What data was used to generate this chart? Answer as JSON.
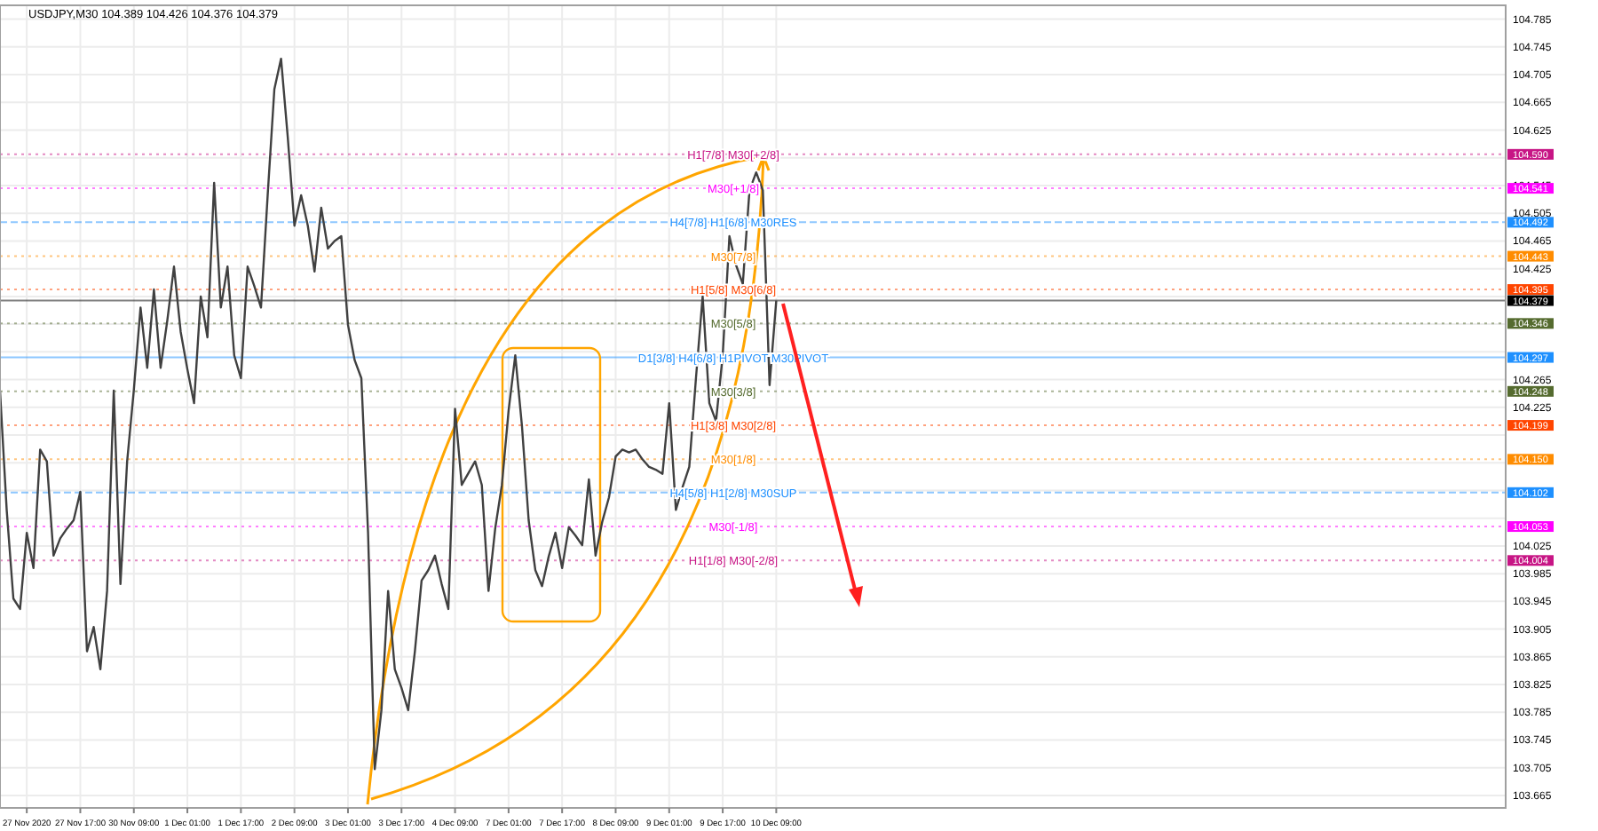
{
  "chart_data": {
    "type": "line",
    "title": "USDJPY,M30  104.389 104.426 104.376 104.379",
    "categories": [
      null,
      null,
      null,
      null,
      "27 Nov 2020",
      null,
      null,
      null,
      null,
      null,
      null,
      null,
      "27 Nov 17:00",
      null,
      null,
      null,
      null,
      null,
      null,
      null,
      "30 Nov 09:00",
      null,
      null,
      null,
      null,
      null,
      null,
      null,
      "1 Dec 01:00",
      null,
      null,
      null,
      null,
      null,
      null,
      null,
      "1 Dec 17:00",
      null,
      null,
      null,
      null,
      null,
      null,
      null,
      "2 Dec 09:00",
      null,
      null,
      null,
      null,
      null,
      null,
      null,
      "3 Dec 01:00",
      null,
      null,
      null,
      null,
      null,
      null,
      null,
      "3 Dec 17:00",
      null,
      null,
      null,
      null,
      null,
      null,
      null,
      "4 Dec 09:00",
      null,
      null,
      null,
      null,
      null,
      null,
      null,
      "7 Dec 01:00",
      null,
      null,
      null,
      null,
      null,
      null,
      null,
      "7 Dec 17:00",
      null,
      null,
      null,
      null,
      null,
      null,
      null,
      "8 Dec 09:00",
      null,
      null,
      null,
      null,
      null,
      null,
      null,
      "9 Dec 01:00",
      null,
      null,
      null,
      null,
      null,
      null,
      null,
      "9 Dec 17:00",
      null,
      null,
      null,
      null,
      null,
      null,
      null,
      "10 Dec 09:00",
      null,
      null,
      null,
      null,
      null,
      null,
      null,
      null,
      null,
      null,
      null,
      null,
      null,
      null,
      null,
      null,
      null,
      null,
      null,
      null,
      null,
      null,
      null,
      null,
      null,
      null,
      null,
      null,
      null,
      null,
      null,
      null,
      null,
      null,
      null,
      null,
      null,
      null,
      null,
      null,
      null,
      null,
      null,
      null,
      null,
      null,
      null,
      null,
      null,
      null,
      null,
      null,
      null,
      null,
      null,
      null,
      null,
      null,
      null,
      null,
      null,
      null,
      null,
      null,
      null,
      null,
      null,
      null,
      null,
      null,
      null,
      null,
      null,
      null,
      null,
      null,
      null,
      null,
      null,
      null,
      null,
      null,
      null,
      null,
      null,
      null,
      null,
      null,
      null,
      null,
      null,
      null,
      null,
      null,
      null,
      null,
      null,
      null,
      null,
      null,
      null,
      null,
      null,
      null,
      null,
      null,
      null,
      null,
      null
    ],
    "series": [
      {
        "color": "#404040",
        "values": [
          104.249,
          104.077,
          103.949,
          103.934,
          104.044,
          103.993,
          104.164,
          104.147,
          104.011,
          104.036,
          104.05,
          104.062,
          104.103,
          103.873,
          103.908,
          103.847,
          103.96,
          104.249,
          103.97,
          104.147,
          104.25,
          104.369,
          104.282,
          104.395,
          104.282,
          104.35,
          104.428,
          104.334,
          104.28,
          104.231,
          104.385,
          104.326,
          104.549,
          104.369,
          104.428,
          104.3,
          104.267,
          104.428,
          104.4,
          104.369,
          104.531,
          104.684,
          104.728,
          104.615,
          104.487,
          104.531,
          104.487,
          104.421,
          104.513,
          104.454,
          104.465,
          104.472,
          104.344,
          104.293,
          104.267,
          104.044,
          103.703,
          103.788,
          103.96,
          103.847,
          103.82,
          103.788,
          103.873,
          103.975,
          103.99,
          104.011,
          103.97,
          103.934,
          104.223,
          104.113,
          104.13,
          104.147,
          104.113,
          103.96,
          104.05,
          104.113,
          104.22,
          104.3,
          104.198,
          104.062,
          103.99,
          103.967,
          104.01,
          104.044,
          103.993,
          104.052,
          104.04,
          104.026,
          104.121,
          104.011,
          104.06,
          104.095,
          104.154,
          104.164,
          104.16,
          104.164,
          104.15,
          104.139,
          104.135,
          104.129,
          104.231,
          104.077,
          104.11,
          104.139,
          104.267,
          104.385,
          104.231,
          104.205,
          104.3,
          104.472,
          104.43,
          104.403,
          104.538,
          104.564,
          104.538,
          104.257,
          104.379,
          null,
          null,
          null,
          null,
          null,
          null,
          null,
          null,
          null,
          null,
          null,
          null,
          null,
          null,
          null,
          null,
          null,
          null,
          null,
          null,
          null,
          null,
          null,
          null,
          null,
          null,
          null,
          null,
          null,
          null,
          null,
          null,
          null,
          null,
          null,
          null,
          null,
          null,
          null,
          null,
          null,
          null,
          null,
          null,
          null,
          null,
          null,
          null,
          null,
          null,
          null,
          null,
          null,
          null,
          null,
          null,
          null,
          null,
          null,
          null,
          null,
          null,
          null,
          null,
          null,
          null,
          null,
          null,
          null,
          null,
          null,
          null,
          null,
          null,
          null,
          null,
          null,
          null,
          null,
          null,
          null,
          null,
          null,
          null,
          null,
          null,
          null,
          null,
          null,
          null,
          null,
          null,
          null,
          null,
          null,
          null,
          null,
          null,
          null,
          null,
          null,
          null,
          null,
          null,
          null,
          null,
          null,
          null,
          null
        ]
      }
    ],
    "ylim": [
      103.647,
      104.805
    ],
    "yticks": [
      103.665,
      103.705,
      103.745,
      103.785,
      103.825,
      103.865,
      103.905,
      103.945,
      103.985,
      104.025,
      {
        "value": 104.065,
        "label": null
      },
      {
        "value": 104.105,
        "label": null
      },
      {
        "value": 104.145,
        "label": null
      },
      {
        "value": 104.185,
        "label": null
      },
      104.225,
      104.265,
      {
        "value": 104.305,
        "label": null
      },
      {
        "value": 104.345,
        "label": null
      },
      {
        "value": 104.385,
        "label": null
      },
      104.425,
      104.465,
      104.505,
      104.545,
      {
        "value": 104.585,
        "label": null
      },
      104.625,
      104.665,
      104.705,
      104.745,
      104.785
    ],
    "grid": true,
    "marker": "none",
    "line_style": "solid",
    "ref_lines": [
      {
        "axis": "y",
        "value": 104.59,
        "label": "104.590",
        "color": "#c71585",
        "line_style": "dotted"
      },
      {
        "axis": "y",
        "value": 104.541,
        "label": "104.541",
        "color": "#ff00ff",
        "line_style": "dotted"
      },
      {
        "axis": "y",
        "value": 104.492,
        "label": "104.492",
        "color": "#1e90ff",
        "line_style": "dashed"
      },
      {
        "axis": "y",
        "value": 104.443,
        "label": "104.443",
        "color": "#ff8c00",
        "line_style": "dotted"
      },
      {
        "axis": "y",
        "value": 104.395,
        "label": "104.395",
        "color": "#ff4500",
        "line_style": "dotted"
      },
      {
        "axis": "y",
        "value": 104.379,
        "label": "104.379",
        "color": "#000000",
        "line_style": "solid"
      },
      {
        "axis": "y",
        "value": 104.346,
        "label": "104.346",
        "color": "#556b2f",
        "line_style": "dotted"
      },
      {
        "axis": "y",
        "value": 104.297,
        "label": "104.297",
        "color": "#1e90ff",
        "line_style": "solid"
      },
      {
        "axis": "y",
        "value": 104.248,
        "label": "104.248",
        "color": "#556b2f",
        "line_style": "dotted"
      },
      {
        "axis": "y",
        "value": 104.199,
        "label": "104.199",
        "color": "#ff4500",
        "line_style": "dotted"
      },
      {
        "axis": "y",
        "value": 104.15,
        "label": "104.150",
        "color": "#ff8c00",
        "line_style": "dotted"
      },
      {
        "axis": "y",
        "value": 104.102,
        "label": "104.102",
        "color": "#1e90ff",
        "line_style": "dashed"
      },
      {
        "axis": "y",
        "value": 104.053,
        "label": "104.053",
        "color": "#ff00ff",
        "line_style": "dotted"
      },
      {
        "axis": "y",
        "value": 104.004,
        "label": "104.004",
        "color": "#c71585",
        "line_style": "dotted"
      }
    ],
    "annotations": [
      {
        "text": "H1[7/8] M30[+2/8]",
        "y": 104.59
      },
      {
        "text": "M30[+1/8]",
        "y": 104.541
      },
      {
        "text": "H4[7/8] H1[6/8] M30RES",
        "y": 104.492
      },
      {
        "text": "M30[7/8]",
        "y": 104.443
      },
      {
        "text": "H1[5/8] M30[6/8]",
        "y": 104.395
      },
      {
        "text": "M30[5/8]",
        "y": 104.346
      },
      {
        "text": "D1[3/8] H4[6/8] H1PIVOT M30PIVOT",
        "y": 104.297
      },
      {
        "text": "M30[3/8]",
        "y": 104.248
      },
      {
        "text": "H1[3/8] M30[2/8]",
        "y": 104.199
      },
      {
        "text": "M30[1/8]",
        "y": 104.15
      },
      {
        "text": "H4[5/8] H1[2/8] M30SUP",
        "y": 104.102
      },
      {
        "text": "M30[-1/8]",
        "y": 104.053
      },
      {
        "text": "H1[1/8] M30[-2/8]",
        "y": 104.004
      }
    ]
  }
}
